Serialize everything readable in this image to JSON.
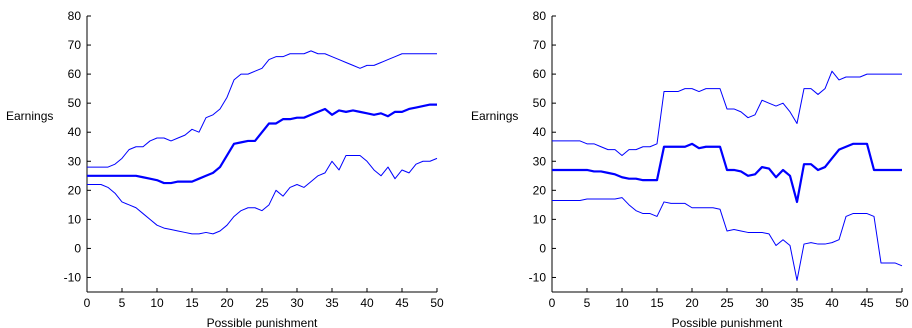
{
  "chart_data": [
    {
      "type": "line",
      "xlabel": "Possible punishment",
      "ylabel": "Earnings",
      "xlim": [
        0,
        50
      ],
      "ylim": [
        -15,
        80
      ],
      "xticks": [
        0,
        5,
        10,
        15,
        20,
        25,
        30,
        35,
        40,
        45,
        50
      ],
      "yticks": [
        -10,
        0,
        10,
        20,
        30,
        40,
        50,
        60,
        70,
        80
      ],
      "grid": false,
      "line_color": "#0000ff",
      "series": [
        {
          "role": "upper",
          "x": [
            0,
            1,
            2,
            3,
            4,
            5,
            6,
            7,
            8,
            9,
            10,
            11,
            12,
            13,
            14,
            15,
            16,
            17,
            18,
            19,
            20,
            21,
            22,
            23,
            24,
            25,
            26,
            27,
            28,
            29,
            30,
            31,
            32,
            33,
            34,
            35,
            36,
            37,
            38,
            39,
            40,
            41,
            42,
            43,
            44,
            45,
            46,
            47,
            48,
            49,
            50
          ],
          "values": [
            28,
            28,
            28,
            28,
            29,
            31,
            34,
            35,
            35,
            37,
            38,
            38,
            37,
            38,
            39,
            41,
            40,
            45,
            46,
            48,
            52,
            58,
            60,
            60,
            61,
            62,
            65,
            66,
            66,
            67,
            67,
            67,
            68,
            67,
            67,
            66,
            65,
            64,
            63,
            62,
            63,
            63,
            64,
            65,
            66,
            67,
            67,
            67,
            67,
            67,
            67
          ]
        },
        {
          "role": "mean",
          "x": [
            0,
            1,
            2,
            3,
            4,
            5,
            6,
            7,
            8,
            9,
            10,
            11,
            12,
            13,
            14,
            15,
            16,
            17,
            18,
            19,
            20,
            21,
            22,
            23,
            24,
            25,
            26,
            27,
            28,
            29,
            30,
            31,
            32,
            33,
            34,
            35,
            36,
            37,
            38,
            39,
            40,
            41,
            42,
            43,
            44,
            45,
            46,
            47,
            48,
            49,
            50
          ],
          "values": [
            25,
            25,
            25,
            25,
            25,
            25,
            25,
            25,
            24.5,
            24,
            23.5,
            22.5,
            22.5,
            23,
            23,
            23,
            24,
            25,
            26,
            28,
            32,
            36,
            36.5,
            37,
            37,
            40,
            43,
            43,
            44.5,
            44.5,
            45,
            45,
            46,
            47,
            48,
            46,
            47.5,
            47,
            47.5,
            47,
            46.5,
            46,
            46.5,
            45.5,
            47,
            47,
            48,
            48.5,
            49,
            49.5,
            49.5
          ]
        },
        {
          "role": "lower",
          "x": [
            0,
            1,
            2,
            3,
            4,
            5,
            6,
            7,
            8,
            9,
            10,
            11,
            12,
            13,
            14,
            15,
            16,
            17,
            18,
            19,
            20,
            21,
            22,
            23,
            24,
            25,
            26,
            27,
            28,
            29,
            30,
            31,
            32,
            33,
            34,
            35,
            36,
            37,
            38,
            39,
            40,
            41,
            42,
            43,
            44,
            45,
            46,
            47,
            48,
            49,
            50
          ],
          "values": [
            22,
            22,
            22,
            21,
            19,
            16,
            15,
            14,
            12,
            10,
            8,
            7,
            6.5,
            6,
            5.5,
            5,
            5,
            5.5,
            5,
            6,
            8,
            11,
            13,
            14,
            14,
            13,
            15,
            20,
            18,
            21,
            22,
            21,
            23,
            25,
            26,
            30,
            27,
            32,
            32,
            32,
            30,
            27,
            25,
            28,
            24,
            27,
            26,
            29,
            30,
            30,
            31
          ]
        }
      ]
    },
    {
      "type": "line",
      "xlabel": "Possible punishment",
      "ylabel": "Earnings",
      "xlim": [
        0,
        50
      ],
      "ylim": [
        -15,
        80
      ],
      "xticks": [
        0,
        5,
        10,
        15,
        20,
        25,
        30,
        35,
        40,
        45,
        50
      ],
      "yticks": [
        -10,
        0,
        10,
        20,
        30,
        40,
        50,
        60,
        70,
        80
      ],
      "grid": false,
      "line_color": "#0000ff",
      "series": [
        {
          "role": "upper",
          "x": [
            0,
            1,
            2,
            3,
            4,
            5,
            6,
            7,
            8,
            9,
            10,
            11,
            12,
            13,
            14,
            15,
            16,
            17,
            18,
            19,
            20,
            21,
            22,
            23,
            24,
            25,
            26,
            27,
            28,
            29,
            30,
            31,
            32,
            33,
            34,
            35,
            36,
            37,
            38,
            39,
            40,
            41,
            42,
            43,
            44,
            45,
            46,
            47,
            48,
            49,
            50
          ],
          "values": [
            37,
            37,
            37,
            37,
            37,
            36,
            36,
            35,
            34,
            34,
            32,
            34,
            34,
            35,
            35,
            36,
            54,
            54,
            54,
            55,
            55,
            54,
            55,
            55,
            55,
            48,
            48,
            47,
            45,
            46,
            51,
            50,
            49,
            50,
            47,
            43,
            55,
            55,
            53,
            55,
            61,
            58,
            59,
            59,
            59,
            60,
            60,
            60,
            60,
            60,
            60
          ]
        },
        {
          "role": "mean",
          "x": [
            0,
            1,
            2,
            3,
            4,
            5,
            6,
            7,
            8,
            9,
            10,
            11,
            12,
            13,
            14,
            15,
            16,
            17,
            18,
            19,
            20,
            21,
            22,
            23,
            24,
            25,
            26,
            27,
            28,
            29,
            30,
            31,
            32,
            33,
            34,
            35,
            36,
            37,
            38,
            39,
            40,
            41,
            42,
            43,
            44,
            45,
            46,
            47,
            48,
            49,
            50
          ],
          "values": [
            27,
            27,
            27,
            27,
            27,
            27,
            26.5,
            26.5,
            26,
            25.5,
            24.5,
            24,
            24,
            23.5,
            23.5,
            23.5,
            35,
            35,
            35,
            35,
            36,
            34.5,
            35,
            35,
            35,
            27,
            27,
            26.5,
            25,
            25.5,
            28,
            27.5,
            24.5,
            27,
            25,
            16,
            29,
            29,
            27,
            28,
            31,
            34,
            35,
            36,
            36,
            36,
            27,
            27,
            27,
            27,
            27
          ]
        },
        {
          "role": "lower",
          "x": [
            0,
            1,
            2,
            3,
            4,
            5,
            6,
            7,
            8,
            9,
            10,
            11,
            12,
            13,
            14,
            15,
            16,
            17,
            18,
            19,
            20,
            21,
            22,
            23,
            24,
            25,
            26,
            27,
            28,
            29,
            30,
            31,
            32,
            33,
            34,
            35,
            36,
            37,
            38,
            39,
            40,
            41,
            42,
            43,
            44,
            45,
            46,
            47,
            48,
            49,
            50
          ],
          "values": [
            16.5,
            16.5,
            16.5,
            16.5,
            16.5,
            17,
            17,
            17,
            17,
            17,
            17.5,
            15,
            13,
            12,
            12,
            11,
            16,
            15.5,
            15.5,
            15.5,
            14,
            14,
            14,
            14,
            13.5,
            6,
            6.5,
            6,
            5.5,
            5.5,
            5.5,
            5,
            1,
            3,
            1,
            -11,
            1.5,
            2,
            1.5,
            1.5,
            2,
            3,
            11,
            12,
            12,
            12,
            11,
            -5,
            -5,
            -5,
            -6
          ]
        }
      ]
    }
  ]
}
